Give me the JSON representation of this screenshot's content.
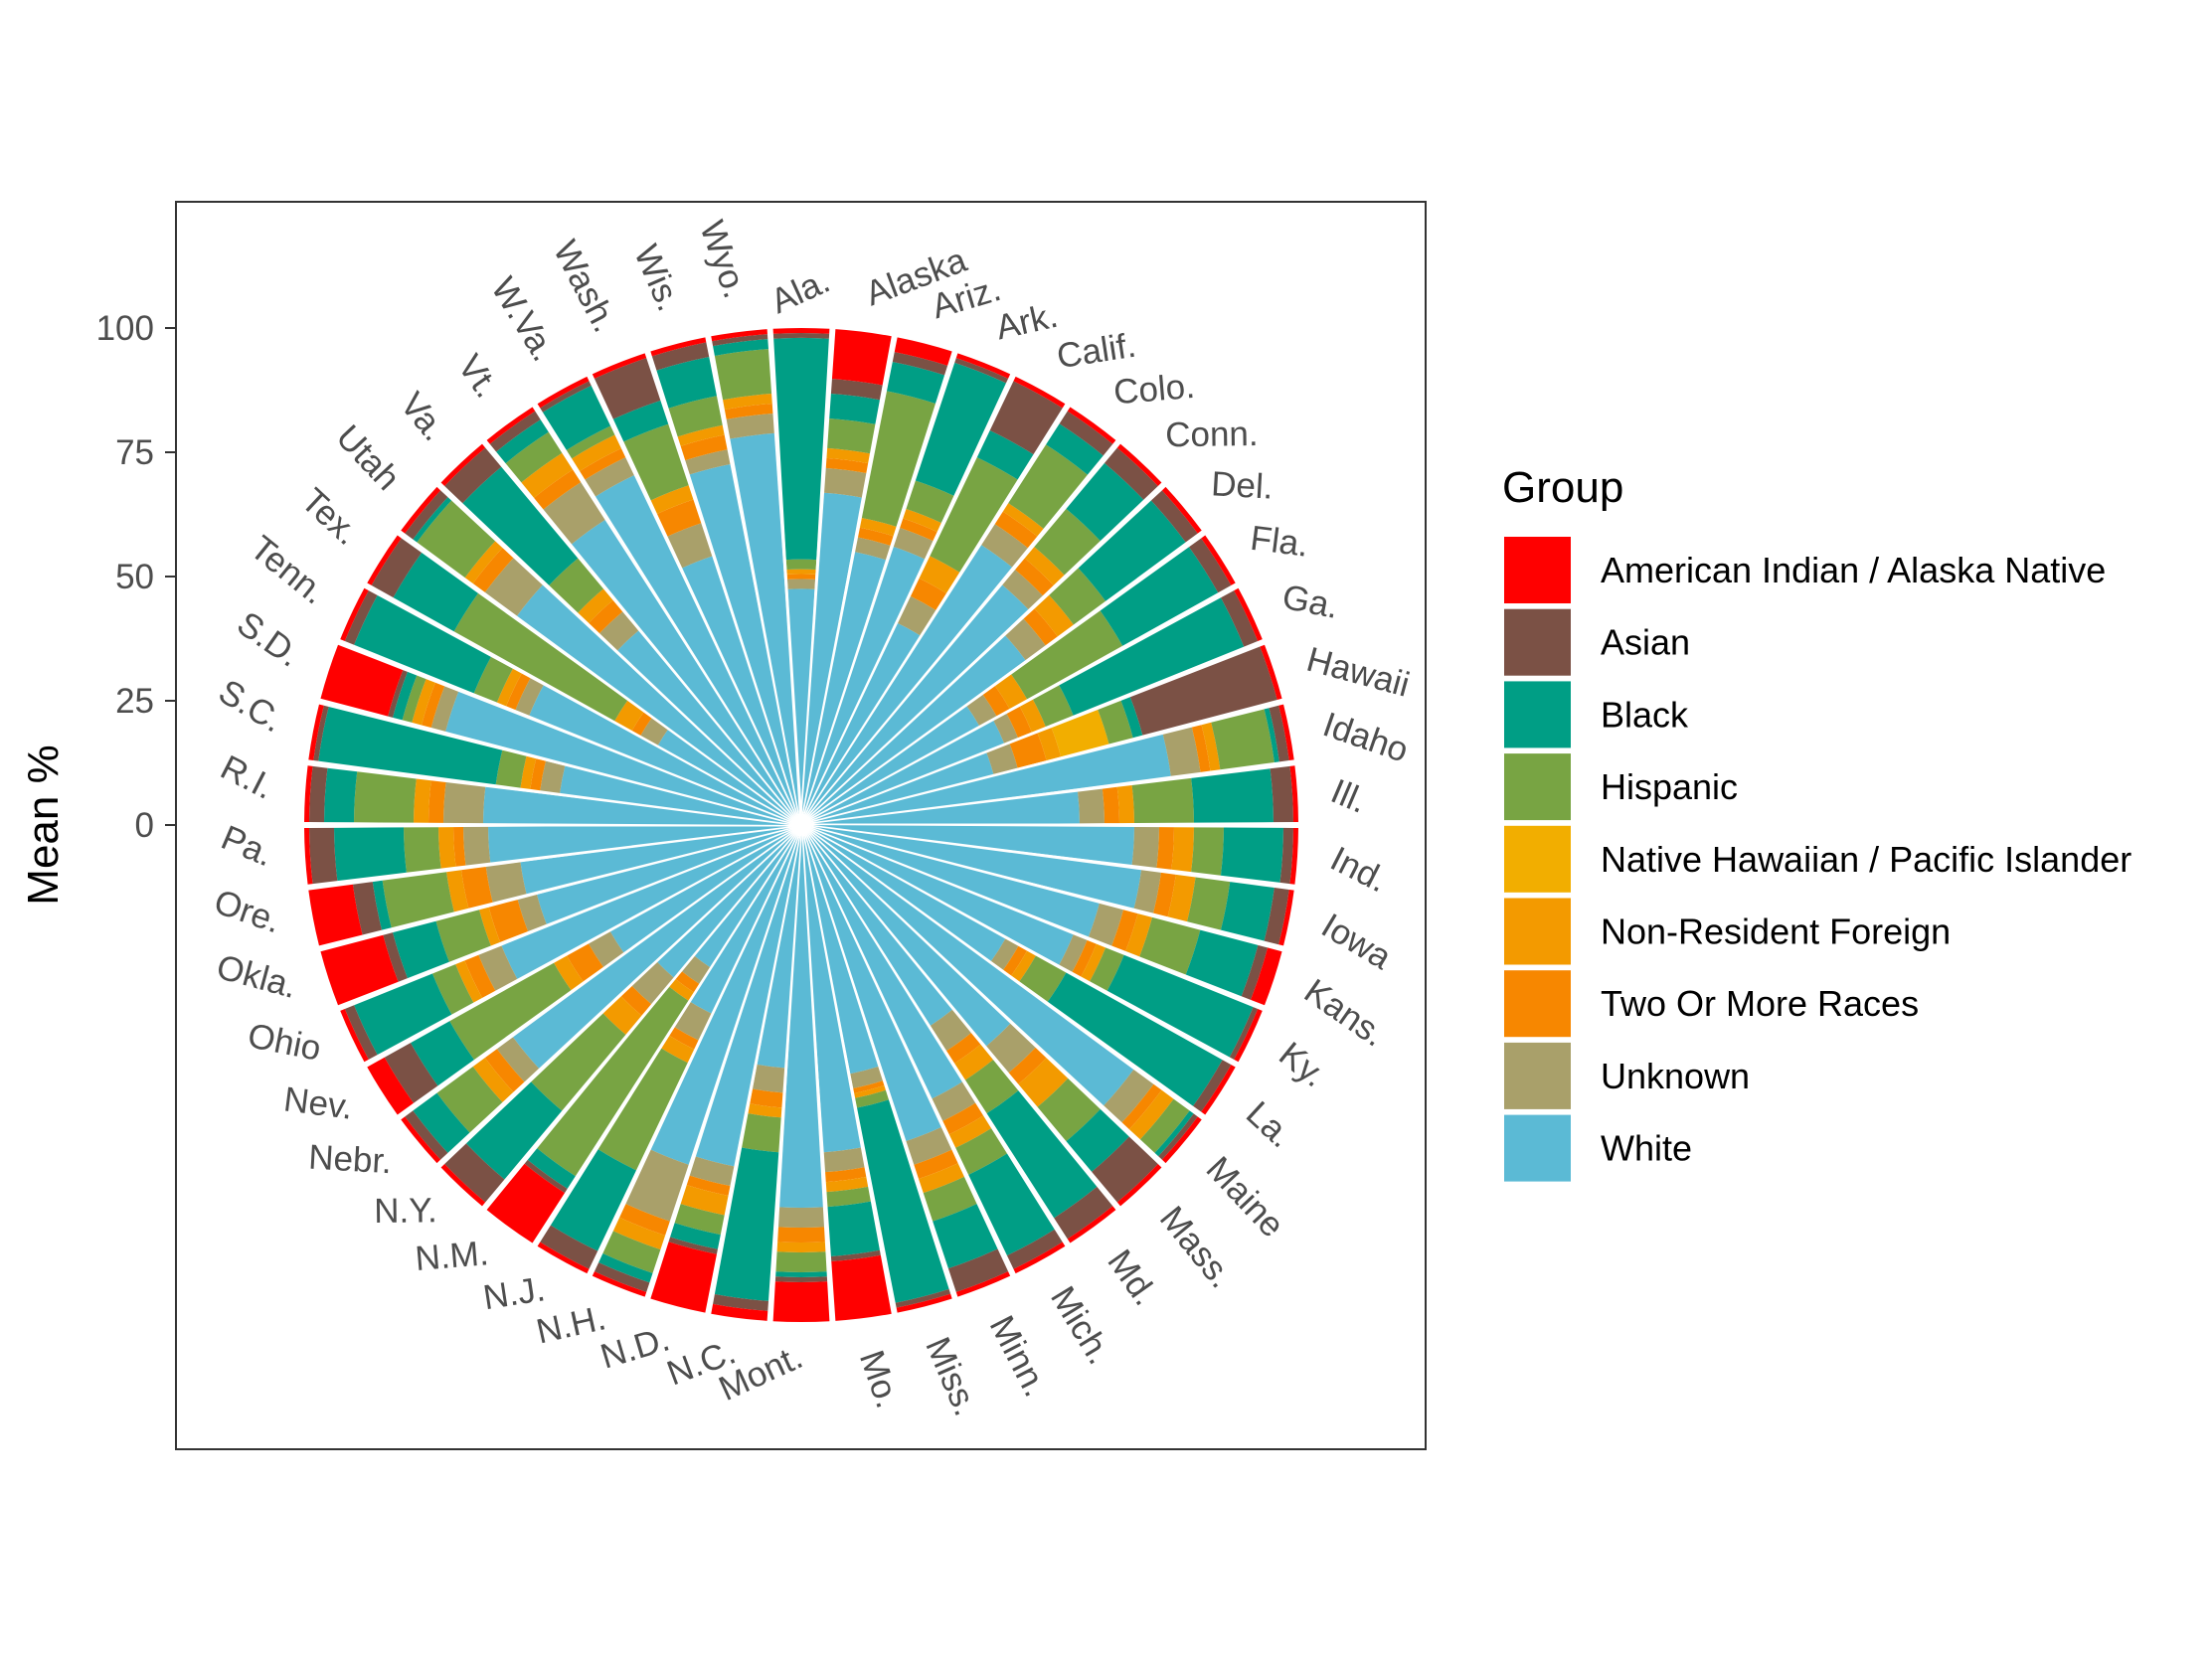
{
  "chart_data": {
    "type": "polar-stacked-bar",
    "ylabel": "Mean %",
    "y_ticks": [
      "0",
      "25",
      "50",
      "75",
      "100"
    ],
    "ylim": [
      -53,
      120
    ],
    "legend": {
      "title": "Group",
      "position": "right"
    },
    "series": [
      {
        "name": "American Indian / Alaska Native",
        "color": "#FF0000"
      },
      {
        "name": "Asian",
        "color": "#7B5145"
      },
      {
        "name": "Black",
        "color": "#009E85"
      },
      {
        "name": "Hispanic",
        "color": "#78A443"
      },
      {
        "name": "Native Hawaiian / Pacific Islander",
        "color": "#F2AE00"
      },
      {
        "name": "Non-Resident Foreign",
        "color": "#F39A00"
      },
      {
        "name": "Two Or More Races",
        "color": "#F78700"
      },
      {
        "name": "Unknown",
        "color": "#A9A06A"
      },
      {
        "name": "White",
        "color": "#5BBAD5"
      }
    ],
    "series_order_from_center": [
      "White",
      "Unknown",
      "Two Or More Races",
      "Non-Resident Foreign",
      "Native Hawaiian / Pacific Islander",
      "Hispanic",
      "Black",
      "Asian",
      "American Indian / Alaska Native"
    ],
    "categories": [
      "Ala.",
      "Alaska",
      "Ariz.",
      "Ark.",
      "Calif.",
      "Colo.",
      "Conn.",
      "Del.",
      "Fla.",
      "Ga.",
      "Hawaii",
      "Idaho",
      "Ill.",
      "Ind.",
      "Iowa",
      "Kans.",
      "Ky.",
      "La.",
      "Maine",
      "Mass.",
      "Md.",
      "Mich.",
      "Minn.",
      "Miss.",
      "Mo.",
      "Mont.",
      "N.C.",
      "N.D.",
      "N.H.",
      "N.J.",
      "N.M.",
      "N.Y.",
      "Nebr.",
      "Nev.",
      "Ohio",
      "Okla.",
      "Ore.",
      "Pa.",
      "R.I.",
      "S.C.",
      "S.D.",
      "Tenn.",
      "Tex.",
      "Utah",
      "Va.",
      "Vt.",
      "W.Va.",
      "Wash.",
      "Wis.",
      "Wyo."
    ],
    "stacks": [
      [
        1,
        1,
        45,
        2,
        0,
        1,
        1,
        2,
        48
      ],
      [
        10,
        3,
        5,
        6,
        0,
        2,
        2,
        5,
        67
      ],
      [
        3,
        2,
        6,
        26,
        0,
        2,
        2,
        3,
        56
      ],
      [
        1,
        1,
        25,
        6,
        0,
        2,
        2,
        4,
        59
      ],
      [
        1,
        11,
        6,
        22,
        0,
        5,
        4,
        6,
        45
      ],
      [
        1,
        3,
        5,
        14,
        0,
        2,
        3,
        5,
        67
      ],
      [
        1,
        4,
        12,
        10,
        0,
        3,
        3,
        4,
        63
      ],
      [
        1,
        3,
        20,
        8,
        0,
        4,
        3,
        5,
        56
      ],
      [
        1,
        3,
        22,
        22,
        0,
        4,
        3,
        4,
        41
      ],
      [
        1,
        3,
        37,
        6,
        0,
        3,
        3,
        3,
        44
      ],
      [
        1,
        28,
        2,
        5,
        10,
        3,
        6,
        5,
        40
      ],
      [
        1,
        2,
        1,
        11,
        0,
        2,
        2,
        6,
        75
      ],
      [
        1,
        4,
        16,
        12,
        0,
        3,
        3,
        5,
        56
      ],
      [
        1,
        2,
        12,
        6,
        0,
        4,
        3,
        5,
        67
      ],
      [
        1,
        3,
        9,
        7,
        0,
        4,
        3,
        4,
        69
      ],
      [
        3,
        2,
        12,
        10,
        0,
        3,
        3,
        5,
        62
      ],
      [
        1,
        1,
        28,
        4,
        0,
        2,
        2,
        3,
        59
      ],
      [
        1,
        2,
        36,
        7,
        0,
        2,
        2,
        3,
        47
      ],
      [
        1,
        1,
        1,
        4,
        0,
        3,
        2,
        5,
        83
      ],
      [
        1,
        8,
        8,
        9,
        0,
        6,
        3,
        7,
        58
      ],
      [
        1,
        5,
        25,
        8,
        0,
        4,
        3,
        6,
        48
      ],
      [
        1,
        3,
        18,
        6,
        0,
        3,
        3,
        5,
        61
      ],
      [
        1,
        5,
        10,
        6,
        0,
        3,
        3,
        5,
        67
      ],
      [
        1,
        1,
        40,
        2,
        0,
        1,
        1,
        3,
        51
      ],
      [
        12,
        1,
        10,
        3,
        0,
        2,
        2,
        4,
        66
      ],
      [
        8,
        1,
        1,
        4,
        0,
        2,
        3,
        4,
        77
      ],
      [
        2,
        2,
        30,
        7,
        0,
        2,
        3,
        5,
        49
      ],
      [
        12,
        1,
        3,
        4,
        0,
        4,
        2,
        4,
        70
      ],
      [
        1,
        2,
        2,
        5,
        0,
        3,
        3,
        12,
        72
      ],
      [
        1,
        4,
        18,
        24,
        0,
        3,
        2,
        6,
        42
      ],
      [
        12,
        1,
        3,
        42,
        0,
        2,
        2,
        4,
        34
      ],
      [
        1,
        6,
        18,
        20,
        0,
        5,
        3,
        7,
        40
      ],
      [
        1,
        2,
        6,
        9,
        0,
        3,
        3,
        4,
        72
      ],
      [
        4,
        6,
        9,
        24,
        0,
        3,
        5,
        5,
        44
      ],
      [
        1,
        2,
        17,
        5,
        0,
        2,
        3,
        5,
        65
      ],
      [
        13,
        2,
        9,
        9,
        0,
        2,
        6,
        4,
        55
      ],
      [
        9,
        4,
        2,
        13,
        0,
        3,
        5,
        7,
        57
      ],
      [
        1,
        5,
        14,
        7,
        0,
        3,
        2,
        5,
        63
      ],
      [
        1,
        3,
        6,
        12,
        0,
        3,
        3,
        8,
        64
      ],
      [
        1,
        1,
        36,
        5,
        0,
        2,
        2,
        4,
        49
      ],
      [
        14,
        1,
        2,
        2,
        0,
        2,
        2,
        3,
        74
      ],
      [
        1,
        2,
        26,
        5,
        0,
        2,
        2,
        3,
        59
      ],
      [
        1,
        5,
        14,
        37,
        0,
        4,
        2,
        4,
        33
      ],
      [
        1,
        2,
        1,
        12,
        0,
        2,
        3,
        8,
        71
      ],
      [
        1,
        5,
        24,
        8,
        0,
        3,
        3,
        5,
        51
      ],
      [
        1,
        2,
        3,
        5,
        0,
        4,
        3,
        9,
        73
      ],
      [
        1,
        1,
        9,
        2,
        0,
        3,
        2,
        4,
        78
      ],
      [
        1,
        9,
        5,
        13,
        0,
        3,
        5,
        7,
        57
      ],
      [
        1,
        3,
        8,
        6,
        0,
        2,
        3,
        3,
        74
      ],
      [
        1,
        1,
        2,
        9,
        0,
        2,
        2,
        4,
        79
      ]
    ]
  }
}
